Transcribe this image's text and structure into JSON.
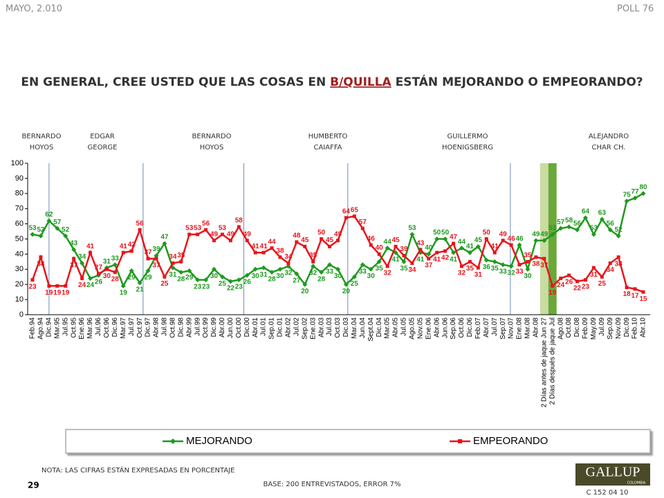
{
  "header": {
    "date": "MAYO, 2.010",
    "poll": "POLL 76"
  },
  "chart_data": {
    "type": "line",
    "title_parts": [
      "EN GENERAL, CREE USTED QUE LAS COSAS EN ",
      "B/QUILLA",
      " ESTÁN MEJORANDO O EMPEORANDO?"
    ],
    "annotations": [
      {
        "lines": [
          "BERNARDO",
          "HOYOS"
        ]
      },
      {
        "lines": [
          "EDGAR",
          "GEORGE"
        ]
      },
      {
        "lines": [
          "BERNARDO",
          "HOYOS"
        ]
      },
      {
        "lines": [
          "HUMBERTO",
          "CAIAFFA"
        ]
      },
      {
        "lines": [
          "GUILLERMO",
          "HOENIGSBERG"
        ]
      },
      {
        "lines": [
          "ALEJANDRO",
          "CHAR CH."
        ]
      }
    ],
    "categories": [
      "Feb.94",
      "Ago.94",
      "Dic.94",
      "Mar.95",
      "Jul.95",
      "Oct.95",
      "Ene.96",
      "Mar.96",
      "Jul.96",
      "Oct.96",
      "Dic.96",
      "Mar.97",
      "Jul.97",
      "Oct.97",
      "Dic.97",
      "Abr.98",
      "Jul.98",
      "Oct.98",
      "Dic.98",
      "Abr.99",
      "Jul.99",
      "Oct.99",
      "Dic.99",
      "Abr.00",
      "Jun.00",
      "Oct.00",
      "Dic.00",
      "Abr.01",
      "Jul.01",
      "Sep.01",
      "Dic.01",
      "Abr.02",
      "Jul.02",
      "Sep.02",
      "Ene.03",
      "Abr.03",
      "Jul.03",
      "Oct.03",
      "Dic.03",
      "Mar.04",
      "Jun.04",
      "Sept.04",
      "Dic.04",
      "Mar.05",
      "Abr.05",
      "Jul.05",
      "Ago.05",
      "Nov.05",
      "Ene.06",
      "Abr.06",
      "Jun.06",
      "Sep.06",
      "Oct.06",
      "Dic.06",
      "Feb.07",
      "Abr.07",
      "Jul.07",
      "Sep.07",
      "Nov.07",
      "Ene.08",
      "Mar.08",
      "Abr.08",
      "2 Días antes de jaque Jun 27",
      "2 Días después de jaque Jul",
      "Ago.08",
      "Oct.08",
      "Dic.08",
      "Feb.09",
      "May.09",
      "Jul.09",
      "Sep.09",
      "Nov.09",
      "Dic.09",
      "Feb.10",
      "Abr.10"
    ],
    "series": [
      {
        "name": "MEJORANDO",
        "color": "#1e9a1e",
        "marker": "diamond",
        "values": [
          53,
          52,
          62,
          57,
          52,
          43,
          34,
          24,
          26,
          31,
          33,
          19,
          29,
          21,
          29,
          39,
          47,
          31,
          28,
          29,
          23,
          23,
          30,
          25,
          22,
          23,
          26,
          30,
          31,
          28,
          30,
          32,
          27,
          20,
          32,
          28,
          33,
          30,
          20,
          25,
          33,
          30,
          35,
          44,
          41,
          35,
          53,
          41,
          40,
          50,
          50,
          41,
          44,
          41,
          45,
          36,
          35,
          33,
          32,
          46,
          30,
          49,
          49,
          53,
          57,
          58,
          56,
          64,
          53,
          63,
          56,
          52,
          75,
          77,
          80
        ]
      },
      {
        "name": "EMPEORANDO",
        "color": "#e8141b",
        "marker": "square",
        "values": [
          23,
          38,
          19,
          19,
          19,
          37,
          24,
          41,
          27,
          30,
          28,
          41,
          42,
          56,
          37,
          37,
          25,
          34,
          35,
          53,
          53,
          56,
          49,
          53,
          49,
          58,
          49,
          41,
          41,
          44,
          38,
          34,
          48,
          45,
          35,
          50,
          45,
          49,
          64,
          65,
          57,
          46,
          40,
          32,
          45,
          39,
          34,
          43,
          37,
          41,
          42,
          47,
          32,
          35,
          31,
          50,
          41,
          49,
          46,
          33,
          35,
          38,
          37,
          19,
          24,
          26,
          22,
          23,
          31,
          25,
          34,
          38,
          18,
          17,
          15
        ]
      }
    ],
    "ylim": [
      0,
      100
    ],
    "yticks": [
      0,
      10,
      20,
      30,
      40,
      50,
      60,
      70,
      80,
      90,
      100
    ],
    "grid": false,
    "legend": "bottom"
  },
  "footer": {
    "note": "NOTA: LAS CIFRAS ESTÁN EXPRESADAS EN PORCENTAJE",
    "page": "29",
    "base": "BASE: 200 ENTREVISTADOS, ERROR 7%",
    "code": "C 152 04 10",
    "logo": "GALLUP",
    "logo_sub": "COLOMBIA"
  }
}
